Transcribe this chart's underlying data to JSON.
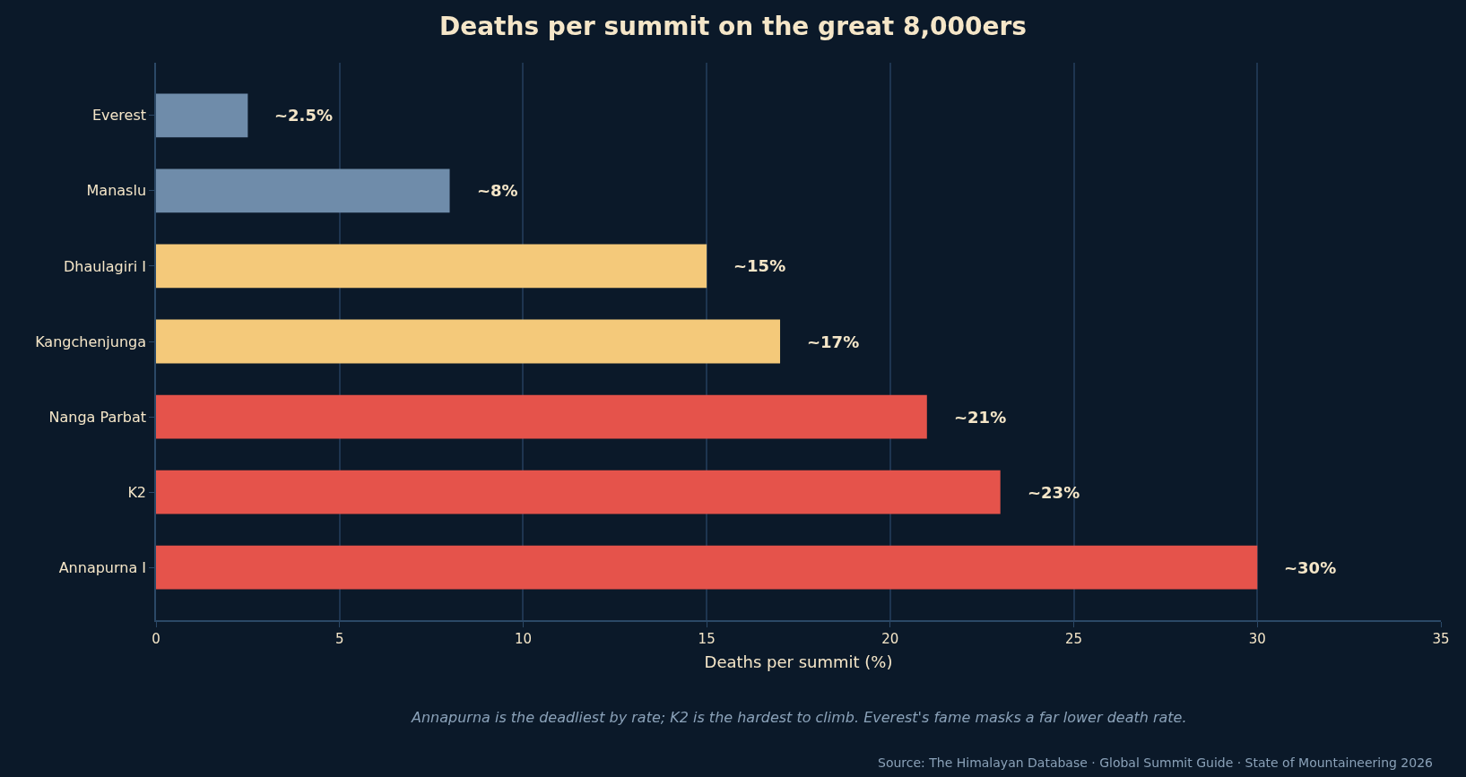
{
  "chart_data": {
    "type": "bar",
    "orientation": "horizontal",
    "title": "Deaths per summit on the great 8,000ers",
    "xlabel": "Deaths per summit (%)",
    "categories": [
      "Everest",
      "Manaslu",
      "Dhaulagiri I",
      "Kangchenjunga",
      "Nanga Parbat",
      "K2",
      "Annapurna I"
    ],
    "values": [
      2.5,
      8,
      15,
      17,
      21,
      23,
      30
    ],
    "colors": [
      "#6f8caa",
      "#6f8caa",
      "#f4c97a",
      "#f4c97a",
      "#e5534b",
      "#e5534b",
      "#e5534b"
    ],
    "value_labels": [
      "~2.5%",
      "~8%",
      "~15%",
      "~17%",
      "~21%",
      "~23%",
      "~30%"
    ],
    "xlim": [
      0,
      35
    ],
    "xticks": [
      0,
      5,
      10,
      15,
      20,
      25,
      30,
      35
    ],
    "grid": "x",
    "annotations": [
      "Annapurna is the deadliest by rate; K2 is the hardest to climb. Everest's fame masks a far lower death rate.",
      "Source: The Himalayan Database · Global Summit Guide · State of Mountaineering 2026"
    ]
  }
}
